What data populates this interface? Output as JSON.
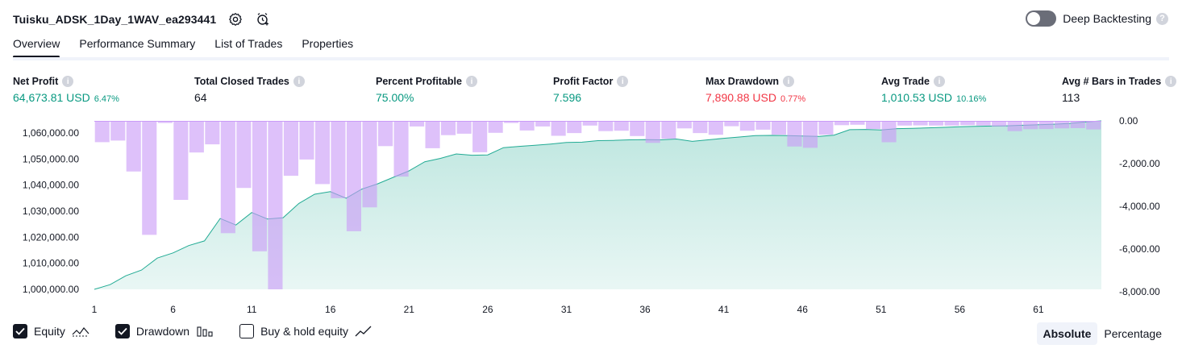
{
  "header": {
    "title": "Tuisku_ADSK_1Day_1WAV_ea293441",
    "deep_backtesting_label": "Deep Backtesting"
  },
  "tabs": [
    {
      "label": "Overview",
      "active": true
    },
    {
      "label": "Performance Summary",
      "active": false
    },
    {
      "label": "List of Trades",
      "active": false
    },
    {
      "label": "Properties",
      "active": false
    }
  ],
  "stats": [
    {
      "label": "Net Profit",
      "value": "64,673.81 USD",
      "pct": "6.47%",
      "color": "green"
    },
    {
      "label": "Total Closed Trades",
      "value": "64",
      "pct": "",
      "color": "default"
    },
    {
      "label": "Percent Profitable",
      "value": "75.00%",
      "pct": "",
      "color": "green"
    },
    {
      "label": "Profit Factor",
      "value": "7.596",
      "pct": "",
      "color": "green"
    },
    {
      "label": "Max Drawdown",
      "value": "7,890.88 USD",
      "pct": "0.77%",
      "color": "red"
    },
    {
      "label": "Avg Trade",
      "value": "1,010.53 USD",
      "pct": "10.16%",
      "color": "green"
    },
    {
      "label": "Avg # Bars in Trades",
      "value": "113",
      "pct": "",
      "color": "default"
    }
  ],
  "chart_data": {
    "type": "area",
    "x_ticks": [
      1,
      6,
      11,
      16,
      21,
      26,
      31,
      36,
      41,
      46,
      51,
      56,
      61
    ],
    "left_axis": {
      "ticks": [
        "1,000,000.00",
        "1,010,000.00",
        "1,020,000.00",
        "1,030,000.00",
        "1,040,000.00",
        "1,050,000.00",
        "1,060,000.00"
      ],
      "ylim": [
        1000000,
        1064673.81
      ]
    },
    "right_axis": {
      "ticks": [
        "0.00",
        "-2,000.00",
        "-4,000.00",
        "-6,000.00",
        "-8,000.00"
      ],
      "ylim": [
        -7890.88,
        0
      ]
    },
    "series": [
      {
        "name": "Equity",
        "color": "#22ab94",
        "values": [
          1000000,
          1001800,
          1005200,
          1007400,
          1012000,
          1014000,
          1016800,
          1018600,
          1027200,
          1024700,
          1029500,
          1027000,
          1027500,
          1033000,
          1036500,
          1037500,
          1035000,
          1038500,
          1040500,
          1043000,
          1045500,
          1049000,
          1050300,
          1052000,
          1051500,
          1051600,
          1054400,
          1054900,
          1055300,
          1055800,
          1056400,
          1056500,
          1057100,
          1057200,
          1057400,
          1057500,
          1057400,
          1057700,
          1056800,
          1057400,
          1058000,
          1058500,
          1059000,
          1059100,
          1059000,
          1058900,
          1058700,
          1059200,
          1061300,
          1061400,
          1061200,
          1061700,
          1061800,
          1062000,
          1062200,
          1062400,
          1062600,
          1062700,
          1062800,
          1063000,
          1063200,
          1063400,
          1063700,
          1064300,
          1064673.81
        ]
      },
      {
        "name": "Drawdown",
        "color": "#d8b4fe",
        "values": [
          -995,
          -920,
          -2370,
          -5340,
          -100,
          -3700,
          -1480,
          -1100,
          -5260,
          -3140,
          -6110,
          -7890,
          -2570,
          -1810,
          -2960,
          -3620,
          -5170,
          -4050,
          -1180,
          -2610,
          -260,
          -1280,
          -670,
          -600,
          -1470,
          -560,
          -100,
          -450,
          -260,
          -700,
          -570,
          -220,
          -480,
          -460,
          -710,
          -1030,
          -840,
          -350,
          -570,
          -650,
          -250,
          -460,
          -410,
          -650,
          -1200,
          -1260,
          -650,
          -200,
          -180,
          -380,
          -1000,
          -220,
          -210,
          -220,
          -220,
          -200,
          -220,
          -260,
          -480,
          -390,
          -380,
          -350,
          -340,
          -400
        ]
      }
    ]
  },
  "legend": [
    {
      "label": "Equity",
      "checked": true,
      "icon": "equity-icon"
    },
    {
      "label": "Drawdown",
      "checked": true,
      "icon": "drawdown-icon"
    },
    {
      "label": "Buy & hold equity",
      "checked": false,
      "icon": "buy-hold-icon"
    }
  ],
  "mode": {
    "absolute": "Absolute",
    "percentage": "Percentage"
  }
}
